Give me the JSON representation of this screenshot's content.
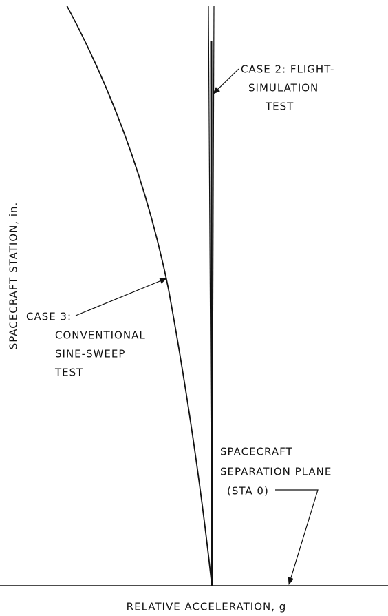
{
  "y_axis_label": "SPACECRAFT STATION, in.",
  "x_axis_label": "RELATIVE ACCELERATION, g",
  "annotations": [
    {
      "lines": [
        "CASE 2: FLIGHT-",
        "SIMULATION",
        "TEST"
      ]
    },
    {
      "lines": [
        "CASE 3:",
        "CONVENTIONAL",
        "SINE-SWEEP",
        "TEST"
      ]
    },
    {
      "lines": [
        "SPACECRAFT",
        "SEPARATION PLANE",
        "(STA 0)"
      ]
    }
  ]
}
